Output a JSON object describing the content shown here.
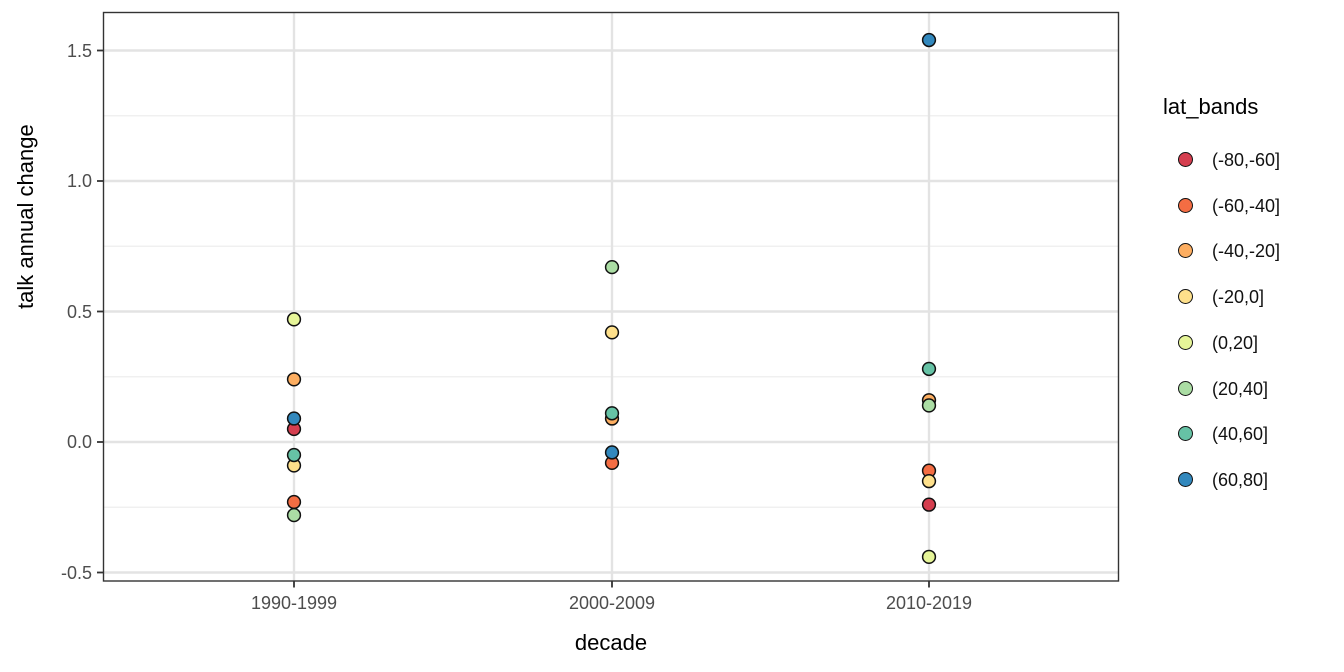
{
  "chart_data": {
    "type": "scatter",
    "title": "",
    "xlabel": "decade",
    "ylabel": "talk annual change",
    "legend_title": "lat_bands",
    "legend_position": "right",
    "grid": "major+minor",
    "categories": [
      "1990-1999",
      "2000-2009",
      "2010-2019"
    ],
    "y_tick_labels": [
      "-0.5",
      "0.0",
      "0.5",
      "1.0",
      "1.5"
    ],
    "y_tick_values": [
      -0.5,
      0.0,
      0.5,
      1.0,
      1.5
    ],
    "y_minor_ticks": [
      -0.25,
      0.25,
      0.75,
      1.25
    ],
    "ylim": [
      -0.53,
      1.65
    ],
    "point_outline_color": "#111111",
    "axis_text_color": "#4d4d4d",
    "series": [
      {
        "name": "(-80,-60]",
        "color": "#D53E4F",
        "values": [
          0.05,
          null,
          -0.24
        ]
      },
      {
        "name": "(-60,-40]",
        "color": "#F46D43",
        "values": [
          -0.23,
          -0.08,
          -0.11
        ]
      },
      {
        "name": "(-40,-20]",
        "color": "#FDAE61",
        "values": [
          0.24,
          0.09,
          0.16
        ]
      },
      {
        "name": "(-20,0]",
        "color": "#FEE08B",
        "values": [
          -0.09,
          0.42,
          -0.15
        ]
      },
      {
        "name": "(0,20]",
        "color": "#E6F598",
        "values": [
          0.47,
          null,
          -0.44
        ]
      },
      {
        "name": "(20,40]",
        "color": "#ABDDA4",
        "values": [
          -0.28,
          0.67,
          0.14
        ]
      },
      {
        "name": "(40,60]",
        "color": "#66C2A5",
        "values": [
          -0.05,
          0.11,
          0.28
        ]
      },
      {
        "name": "(60,80]",
        "color": "#3288BD",
        "values": [
          0.09,
          -0.04,
          1.54
        ]
      }
    ]
  }
}
